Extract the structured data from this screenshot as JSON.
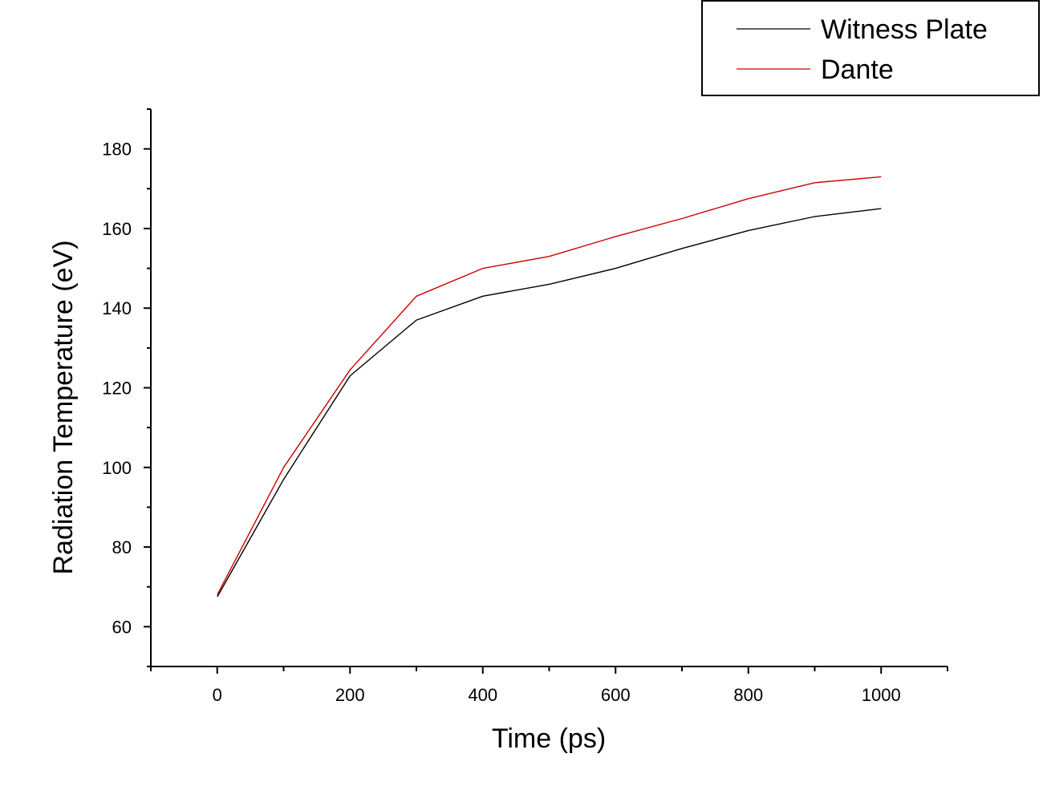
{
  "chart_data": {
    "type": "line",
    "title": "",
    "xlabel": "Time (ps)",
    "ylabel": "Radiation Temperature (eV)",
    "xlim": [
      -100,
      1100
    ],
    "ylim": [
      50,
      190
    ],
    "xticks": [
      0,
      200,
      400,
      600,
      800,
      1000
    ],
    "yticks": [
      60,
      80,
      100,
      120,
      140,
      160,
      180
    ],
    "x_minor_step": 100,
    "y_minor_step": 10,
    "grid": false,
    "legend_position": "top-right",
    "series": [
      {
        "name": "Witness Plate",
        "color": "#000000",
        "x": [
          0,
          100,
          200,
          300,
          400,
          500,
          600,
          700,
          800,
          900,
          1000
        ],
        "y": [
          67.5,
          97,
          123,
          137,
          143,
          146,
          150,
          155,
          159.5,
          163,
          165
        ]
      },
      {
        "name": "Dante",
        "color": "#cc0000",
        "x": [
          0,
          100,
          200,
          300,
          400,
          500,
          600,
          700,
          800,
          900,
          1000
        ],
        "y": [
          68,
          100,
          124.5,
          143,
          150,
          153,
          158,
          162.5,
          167.5,
          171.5,
          173
        ]
      }
    ]
  }
}
